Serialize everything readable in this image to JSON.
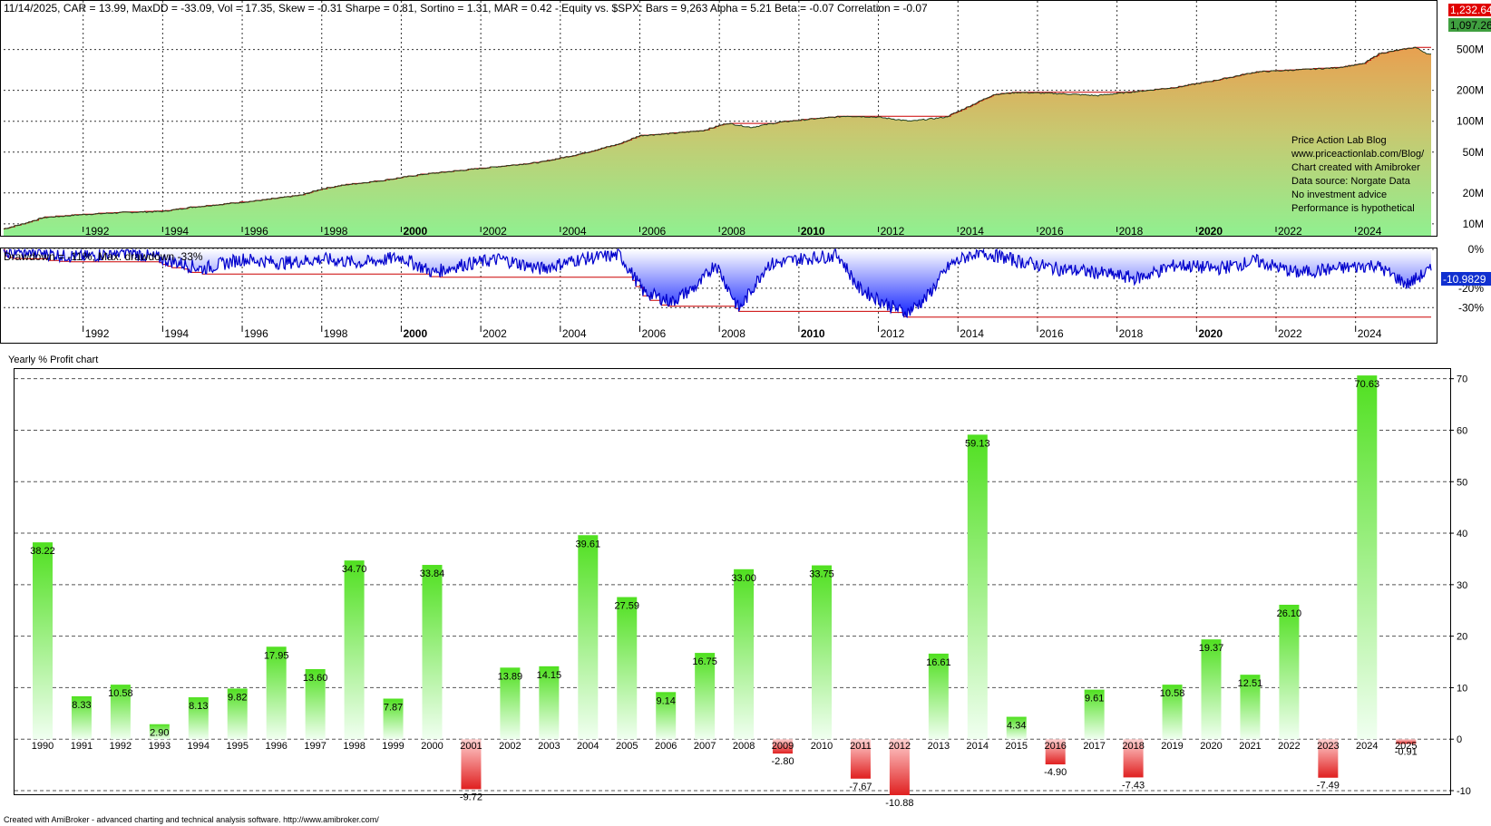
{
  "header": {
    "stats_line": "11/14/2025, CAR = 13.99, MaxDD = -33.09, Vol = 17.35, Skew = -0.31 Sharpe = 0.81, Sortino = 1.31, MAR = 0.42 - Equity vs. $SPX:  Bars = 9,263 Alpha = 5.21 Beta = -0.07 Correlation = -0.07"
  },
  "equity_panel": {
    "badge_red": "1,232.64",
    "badge_green": "1,097.26",
    "y_ticks": [
      "500M",
      "200M",
      "100M",
      "50M",
      "20M",
      "10M"
    ],
    "x_ticks": [
      "1992",
      "1994",
      "1996",
      "1998",
      "2000",
      "2002",
      "2004",
      "2006",
      "2008",
      "2010",
      "2012",
      "2014",
      "2016",
      "2018",
      "2020",
      "2022",
      "2024"
    ],
    "bold_years": [
      "2000",
      "2010",
      "2020"
    ],
    "colors": {
      "fill_top": "#e8a050",
      "fill_bottom": "#90f090",
      "line": "#204020",
      "peak": "#cc0000"
    },
    "notes": [
      "Price Action Lab Blog",
      "www.priceactionlab.com/Blog/",
      "Chart created with Amibroker",
      "Data source: Norgate Data",
      "No investment advice",
      "Performance is hypothetical"
    ]
  },
  "drawdown_panel": {
    "title": "Drawdown = -11%, Max. drawdown -33%",
    "badge": "-10.9829",
    "y_ticks": [
      "0%",
      "-20%",
      "-30%"
    ],
    "colors": {
      "line": "#0000cc",
      "fill_bottom": "#1020ff",
      "fill_top": "#ffffff",
      "max_line": "#cc0000"
    }
  },
  "profit_panel": {
    "title": "Yearly % Profit chart",
    "footer": "Created with AmiBroker - advanced charting and technical analysis software. http://www.amibroker.com/",
    "colors": {
      "pos_top": "#50e020",
      "pos_bottom": "#f0fff0",
      "neg_top": "#ffd0d0",
      "neg_bottom": "#e02020"
    }
  },
  "chart_data": [
    {
      "type": "area",
      "title": "Equity",
      "x_range": [
        1990,
        2025.9
      ],
      "y_scale": "log",
      "y_ticks_value": [
        10000000,
        20000000,
        50000000,
        100000000,
        200000000,
        500000000
      ],
      "ylim_approx": [
        9000000,
        1240000000
      ],
      "last_value": 1097.26,
      "peak_value": 1232.64,
      "approx_log10_points": [
        [
          1990.0,
          6.95
        ],
        [
          1990.5,
          7.0
        ],
        [
          1991.0,
          7.06
        ],
        [
          1992.0,
          7.09
        ],
        [
          1993.0,
          7.11
        ],
        [
          1994.0,
          7.12
        ],
        [
          1994.7,
          7.16
        ],
        [
          1995.5,
          7.19
        ],
        [
          1996.5,
          7.23
        ],
        [
          1997.5,
          7.28
        ],
        [
          1998.0,
          7.34
        ],
        [
          1998.6,
          7.38
        ],
        [
          1999.5,
          7.42
        ],
        [
          2000.5,
          7.48
        ],
        [
          2001.5,
          7.52
        ],
        [
          2002.5,
          7.56
        ],
        [
          2003.5,
          7.6
        ],
        [
          2004.5,
          7.68
        ],
        [
          2005.5,
          7.78
        ],
        [
          2006.0,
          7.86
        ],
        [
          2006.8,
          7.88
        ],
        [
          2007.6,
          7.91
        ],
        [
          2008.2,
          7.98
        ],
        [
          2008.8,
          7.94
        ],
        [
          2009.5,
          7.99
        ],
        [
          2010.3,
          8.02
        ],
        [
          2011.2,
          8.05
        ],
        [
          2012.0,
          8.04
        ],
        [
          2012.8,
          8.0
        ],
        [
          2013.7,
          8.04
        ],
        [
          2014.2,
          8.13
        ],
        [
          2014.9,
          8.26
        ],
        [
          2015.5,
          8.28
        ],
        [
          2016.5,
          8.27
        ],
        [
          2017.5,
          8.25
        ],
        [
          2018.5,
          8.29
        ],
        [
          2019.5,
          8.33
        ],
        [
          2020.5,
          8.4
        ],
        [
          2021.5,
          8.48
        ],
        [
          2022.5,
          8.5
        ],
        [
          2023.5,
          8.52
        ],
        [
          2024.2,
          8.56
        ],
        [
          2024.6,
          8.66
        ],
        [
          2025.5,
          8.72
        ],
        [
          2025.85,
          8.65
        ]
      ]
    },
    {
      "type": "area",
      "title": "Drawdown",
      "x_range": [
        1990,
        2025.9
      ],
      "ylim": [
        -35,
        0
      ],
      "current": -10.98,
      "max_drawdown": -33.09,
      "approx_points": [
        [
          1990.0,
          -1
        ],
        [
          1991.0,
          -2
        ],
        [
          1992.0,
          -4
        ],
        [
          1993.0,
          -1
        ],
        [
          1994.0,
          -5
        ],
        [
          1995.0,
          -10
        ],
        [
          1996.0,
          -5
        ],
        [
          1997.0,
          -7
        ],
        [
          1998.0,
          -5
        ],
        [
          1999.0,
          -7
        ],
        [
          2000.0,
          -4
        ],
        [
          2000.8,
          -12
        ],
        [
          2001.5,
          -8
        ],
        [
          2002.5,
          -5
        ],
        [
          2003.5,
          -10
        ],
        [
          2004.5,
          -5
        ],
        [
          2005.5,
          -3
        ],
        [
          2006.1,
          -22
        ],
        [
          2006.8,
          -27
        ],
        [
          2007.5,
          -18
        ],
        [
          2007.9,
          -7
        ],
        [
          2008.5,
          -31
        ],
        [
          2009.2,
          -8
        ],
        [
          2010.0,
          -5
        ],
        [
          2011.0,
          -3
        ],
        [
          2011.5,
          -20
        ],
        [
          2012.2,
          -28
        ],
        [
          2012.7,
          -33
        ],
        [
          2013.2,
          -25
        ],
        [
          2013.8,
          -8
        ],
        [
          2014.5,
          -1
        ],
        [
          2015.5,
          -6
        ],
        [
          2016.5,
          -10
        ],
        [
          2017.5,
          -12
        ],
        [
          2018.5,
          -15
        ],
        [
          2019.5,
          -8
        ],
        [
          2020.5,
          -10
        ],
        [
          2021.5,
          -6
        ],
        [
          2022.5,
          -12
        ],
        [
          2023.5,
          -10
        ],
        [
          2024.5,
          -8
        ],
        [
          2025.3,
          -18
        ],
        [
          2025.85,
          -11
        ]
      ]
    },
    {
      "type": "bar",
      "title": "Yearly % Profit chart",
      "ylim": [
        -10,
        71
      ],
      "y_ticks": [
        -10,
        0,
        10,
        20,
        30,
        40,
        50,
        60,
        70
      ],
      "categories": [
        "1990",
        "1991",
        "1992",
        "1993",
        "1994",
        "1995",
        "1996",
        "1997",
        "1998",
        "1999",
        "2000",
        "2001",
        "2002",
        "2003",
        "2004",
        "2005",
        "2006",
        "2007",
        "2008",
        "2009",
        "2010",
        "2011",
        "2012",
        "2013",
        "2014",
        "2015",
        "2016",
        "2017",
        "2018",
        "2019",
        "2020",
        "2021",
        "2022",
        "2023",
        "2024",
        "2025"
      ],
      "values": [
        38.22,
        8.33,
        10.58,
        2.9,
        8.13,
        9.82,
        17.95,
        13.6,
        34.7,
        7.87,
        33.84,
        -9.72,
        13.89,
        14.15,
        39.61,
        27.59,
        9.14,
        16.75,
        33.0,
        -2.8,
        33.75,
        -7.67,
        -10.88,
        16.61,
        59.13,
        4.34,
        -4.9,
        9.61,
        -7.43,
        10.58,
        19.37,
        12.51,
        26.1,
        -7.49,
        70.63,
        -0.91
      ],
      "labels": [
        "38.22",
        "8.33",
        "10.58",
        "2.90",
        "8.13",
        "9.82",
        "17.95",
        "13.60",
        "34.70",
        "7.87",
        "33.84",
        "-9.72",
        "13.89",
        "14.15",
        "39.61",
        "27.59",
        "9.14",
        "16.75",
        "33.00",
        "-2.80",
        "33.75",
        "-7.67",
        "-10.88",
        "16.61",
        "59.13",
        "4.34",
        "-4.90",
        "9.61",
        "-7.43",
        "10.58",
        "19.37",
        "12.51",
        "26.10",
        "-7.49",
        "70.63",
        "-0.91"
      ]
    }
  ]
}
